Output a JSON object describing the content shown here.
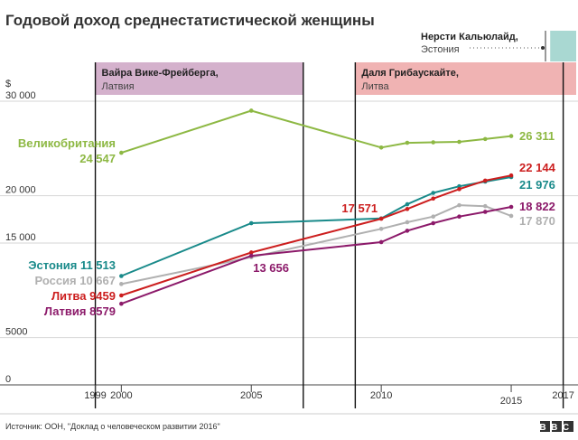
{
  "chart_data": {
    "type": "line",
    "title": "Годовой доход среднестатистической женщины",
    "ylabel": "$",
    "ylim": [
      0,
      30000
    ],
    "yticks": [
      {
        "value": 0,
        "label": "0"
      },
      {
        "value": 5000,
        "label": "5000"
      },
      {
        "value": 15000,
        "label": "15 000"
      },
      {
        "value": 20000,
        "label": "20 000"
      },
      {
        "value": 30000,
        "label": "30 000"
      }
    ],
    "xlim": [
      1997,
      2017.5
    ],
    "xticks": [
      {
        "value": 1999,
        "label": "1999"
      },
      {
        "value": 2000,
        "label": "2000"
      },
      {
        "value": 2005,
        "label": "2005"
      },
      {
        "value": 2010,
        "label": "2010"
      },
      {
        "value": 2015,
        "label": "2015",
        "lower": true
      },
      {
        "value": 2017,
        "label": "2017"
      }
    ],
    "leaders": [
      {
        "name": "Вайра Вике-Фрейберга",
        "country": "Латвия",
        "start": 1999,
        "end": 2007,
        "color": "#d4b1cc"
      },
      {
        "name": "Даля Грибаускайте",
        "country": "Литва",
        "start": 2009,
        "end": 2017.5,
        "color": "#f0b3b3"
      },
      {
        "name": "Нерсти Кальюлайд",
        "country": "Эстония",
        "start": 2016.5,
        "end": 2017.5,
        "color": "#a9d8d2"
      }
    ],
    "series": [
      {
        "name": "Великобритания",
        "color": "#8db843",
        "x": [
          2000,
          2005,
          2010,
          2011,
          2012,
          2013,
          2014,
          2015
        ],
        "values": [
          24547,
          29000,
          25100,
          25600,
          25650,
          25700,
          26000,
          26311
        ],
        "start_label": "Великобритания",
        "start_value_label": "24 547",
        "end_label": "26 311"
      },
      {
        "name": "Эстония",
        "color": "#198a8a",
        "x": [
          2000,
          2005,
          2010,
          2011,
          2012,
          2013,
          2014,
          2015
        ],
        "values": [
          11513,
          17100,
          17600,
          19100,
          20300,
          21000,
          21500,
          21976
        ],
        "start_label": "Эстония 11 513",
        "end_label": "21 976"
      },
      {
        "name": "Россия",
        "color": "#b0b0b0",
        "x": [
          2000,
          2005,
          2010,
          2011,
          2012,
          2013,
          2014,
          2015
        ],
        "values": [
          10667,
          13500,
          16500,
          17200,
          17800,
          19000,
          18900,
          17870
        ],
        "start_label": "Россия 10 667",
        "end_label": "17 870"
      },
      {
        "name": "Литва",
        "color": "#cc1e1e",
        "x": [
          2000,
          2005,
          2010,
          2011,
          2012,
          2013,
          2014,
          2015
        ],
        "values": [
          9459,
          14000,
          17571,
          18600,
          19700,
          20700,
          21600,
          22144
        ],
        "start_label": "Литва 9459",
        "end_label": "22 144",
        "mid_label": "17 571",
        "mid_x": 2010
      },
      {
        "name": "Латвия",
        "color": "#8c1a6a",
        "x": [
          2000,
          2005,
          2010,
          2011,
          2012,
          2013,
          2014,
          2015
        ],
        "values": [
          8579,
          13656,
          15100,
          16300,
          17100,
          17800,
          18300,
          18822
        ],
        "start_label": "Латвия 8579",
        "end_label": "18 822",
        "mid_label": "13 656",
        "mid_x": 2005
      }
    ],
    "source": "Источник: ООН, \"Доклад о человеческом развитии 2016\"",
    "logo": "BBC"
  }
}
